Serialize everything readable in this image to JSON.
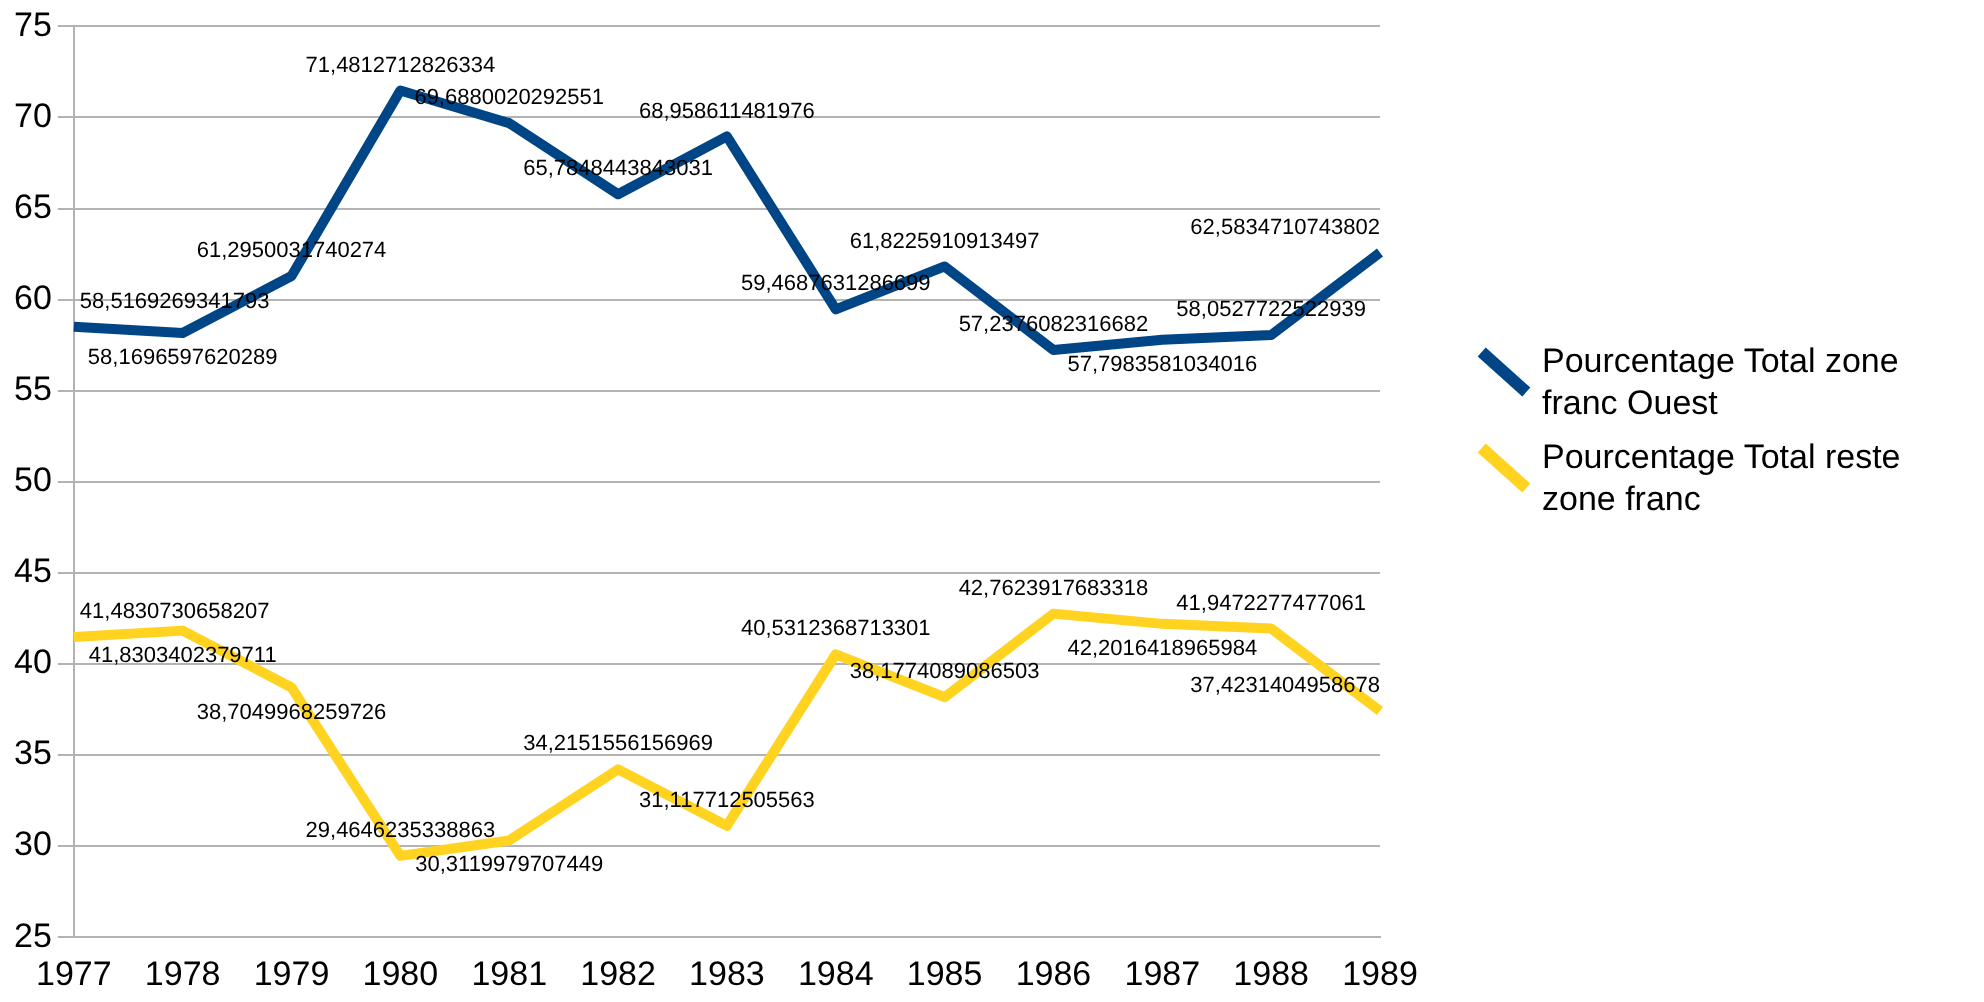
{
  "chart_data": {
    "type": "line",
    "categories": [
      "1977",
      "1978",
      "1979",
      "1980",
      "1981",
      "1982",
      "1983",
      "1984",
      "1985",
      "1986",
      "1987",
      "1988",
      "1989"
    ],
    "series": [
      {
        "name": "Pourcentage Total zone franc Ouest",
        "color": "#004586",
        "values": [
          58.5169269341793,
          58.1696597620289,
          61.2950031740274,
          71.4812712826334,
          69.6880020292551,
          65.7848443843031,
          68.958611481976,
          59.4687631286699,
          61.8225910913497,
          57.2376082316682,
          57.7983581034016,
          58.0527722522939,
          62.5834710743802
        ],
        "value_labels": [
          "58,5169269341793",
          "58,1696597620289",
          "61,2950031740274",
          "71,4812712826334",
          "69,6880020292551",
          "65,7848443843031",
          "68,958611481976",
          "59,4687631286699",
          "61,8225910913497",
          "57,2376082316682",
          "57,7983581034016",
          "58,0527722522939",
          "62,5834710743802"
        ]
      },
      {
        "name": "Pourcentage Total reste zone franc",
        "color": "#ffd320",
        "values": [
          41.4830730658207,
          41.8303402379711,
          38.7049968259726,
          29.4646235338863,
          30.3119979707449,
          34.2151556156969,
          31.117712505563,
          40.5312368713301,
          38.1774089086503,
          42.7623917683318,
          42.2016418965984,
          41.9472277477061,
          37.4231404958678
        ],
        "value_labels": [
          "41,4830730658207",
          "41,8303402379711",
          "38,7049968259726",
          "29,4646235338863",
          "30,3119979707449",
          "34,2151556156969",
          "31,117712505563",
          "40,5312368713301",
          "38,1774089086503",
          "42,7623917683318",
          "42,2016418965984",
          "41,9472277477061",
          "37,4231404958678"
        ]
      }
    ],
    "ylim": [
      25,
      75
    ],
    "yticks": [
      25,
      30,
      35,
      40,
      45,
      50,
      55,
      60,
      65,
      70,
      75
    ],
    "grid": "y",
    "legend": "right",
    "marker": "none",
    "line_style": "solid"
  }
}
